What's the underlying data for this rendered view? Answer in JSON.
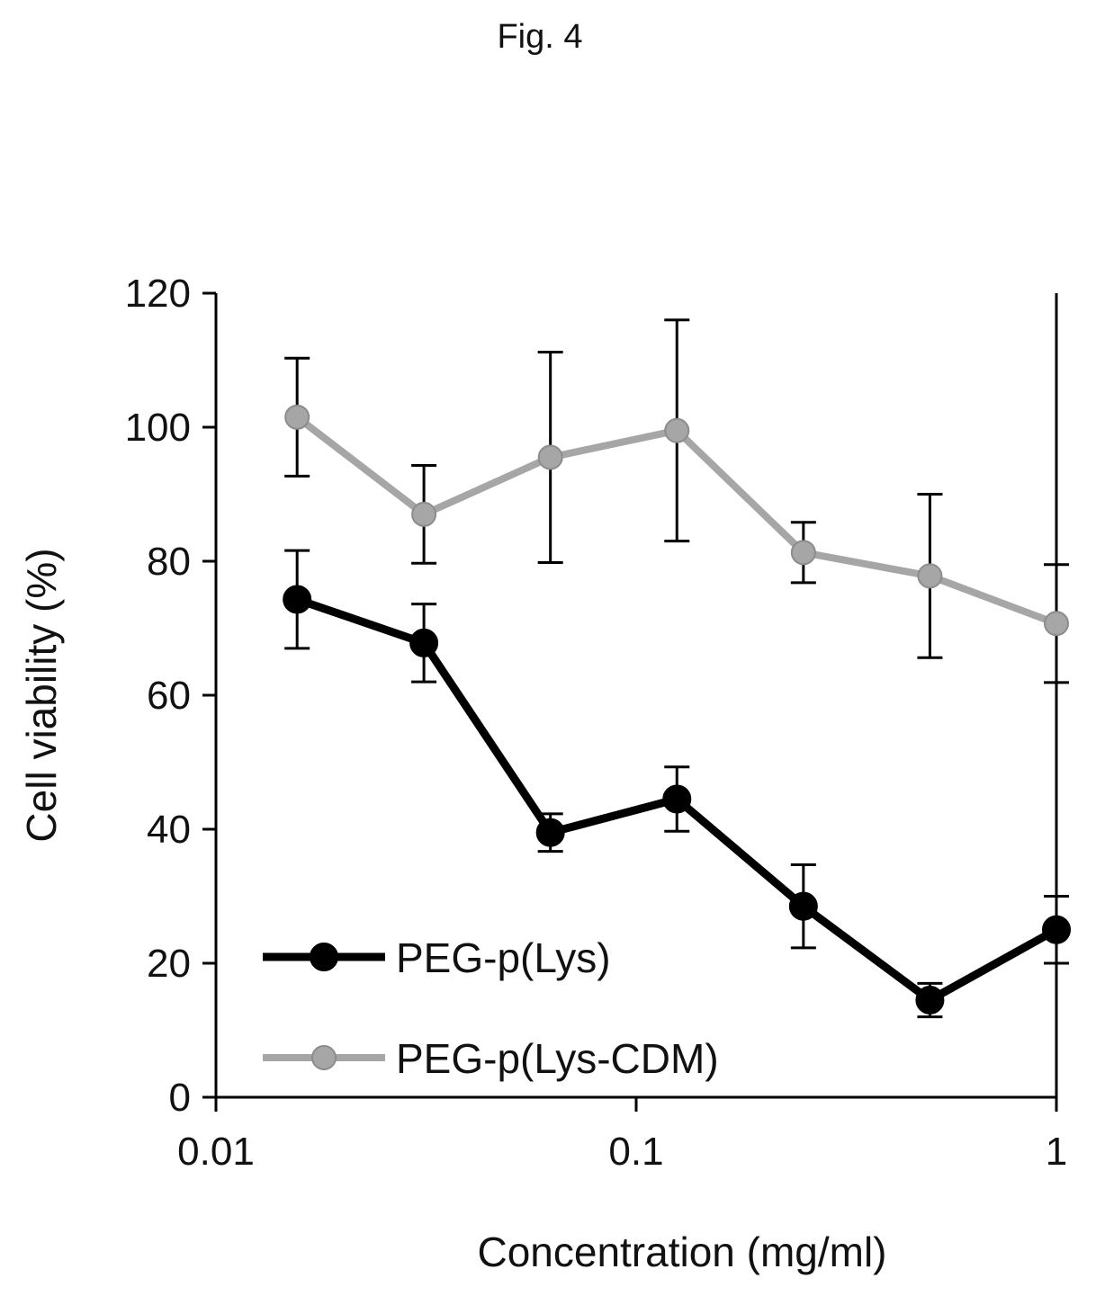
{
  "figure_label": "Fig. 4",
  "chart_data": {
    "type": "line",
    "title": "",
    "xlabel": "Concentration (mg/ml)",
    "ylabel": "Cell viability (%)",
    "x_scale": "log",
    "xlim": [
      0.01,
      1
    ],
    "ylim": [
      0,
      120
    ],
    "x_ticks": [
      0.01,
      0.1,
      1
    ],
    "x_tick_labels": [
      "0.01",
      "0.1",
      "1"
    ],
    "y_ticks": [
      0,
      20,
      40,
      60,
      80,
      100,
      120
    ],
    "y_tick_labels": [
      "0",
      "20",
      "40",
      "60",
      "80",
      "100",
      "120"
    ],
    "x": [
      0.0156,
      0.03125,
      0.0625,
      0.125,
      0.25,
      0.5,
      1
    ],
    "grid": false,
    "legend_position": "bottom-left",
    "series": [
      {
        "name": "PEG-p(Lys)",
        "color": "#000000",
        "values": [
          74.3,
          67.8,
          39.5,
          44.5,
          28.5,
          14.5,
          25
        ],
        "errors": [
          7.3,
          5.8,
          2.8,
          4.8,
          6.2,
          2.5,
          5
        ]
      },
      {
        "name": "PEG-p(Lys-CDM)",
        "color": "#a6a6a6",
        "values": [
          101.5,
          87,
          95.5,
          99.5,
          81.3,
          77.8,
          70.7
        ],
        "errors": [
          8.8,
          7.3,
          15.7,
          16.5,
          4.5,
          12.2,
          8.8
        ]
      }
    ]
  }
}
